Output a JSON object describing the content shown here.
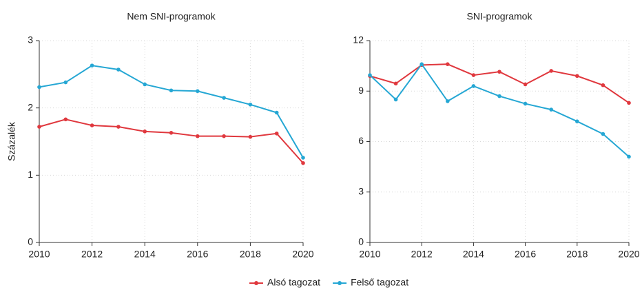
{
  "chart_data": [
    {
      "type": "line",
      "title": "Nem SNI-programok",
      "ylabel": "Százalék",
      "x": [
        2010,
        2011,
        2012,
        2013,
        2014,
        2015,
        2016,
        2017,
        2018,
        2019,
        2020
      ],
      "series": [
        {
          "name": "Alsó tagozat",
          "color": "#e0383e",
          "values": [
            1.72,
            1.83,
            1.74,
            1.72,
            1.65,
            1.63,
            1.58,
            1.58,
            1.57,
            1.62,
            1.18
          ]
        },
        {
          "name": "Felső tagozat",
          "color": "#25a7d4",
          "values": [
            2.31,
            2.38,
            2.63,
            2.57,
            2.35,
            2.26,
            2.25,
            2.15,
            2.05,
            1.93,
            1.26
          ]
        }
      ],
      "xlim": [
        2010,
        2020
      ],
      "xticks": [
        2010,
        2012,
        2014,
        2016,
        2018,
        2020
      ],
      "ylim": [
        0,
        3
      ],
      "yticks": [
        0,
        1,
        2,
        3
      ],
      "grid": true
    },
    {
      "type": "line",
      "title": "SNI-programok",
      "x": [
        2010,
        2011,
        2012,
        2013,
        2014,
        2015,
        2016,
        2017,
        2018,
        2019,
        2020
      ],
      "series": [
        {
          "name": "Alsó tagozat",
          "color": "#e0383e",
          "values": [
            9.9,
            9.45,
            10.55,
            10.6,
            9.95,
            10.15,
            9.4,
            10.2,
            9.9,
            9.35,
            8.3
          ]
        },
        {
          "name": "Felső tagozat",
          "color": "#25a7d4",
          "values": [
            9.95,
            8.5,
            10.6,
            8.4,
            9.3,
            8.7,
            8.25,
            7.9,
            7.2,
            6.45,
            5.1
          ]
        }
      ],
      "xlim": [
        2010,
        2020
      ],
      "xticks": [
        2010,
        2012,
        2014,
        2016,
        2018,
        2020
      ],
      "ylim": [
        0,
        12
      ],
      "yticks": [
        0,
        3,
        6,
        9,
        12
      ],
      "grid": true
    }
  ]
}
